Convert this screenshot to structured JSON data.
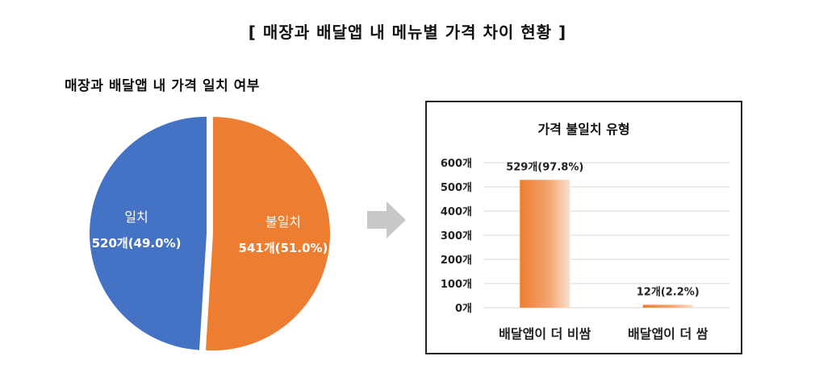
{
  "main_title": "[ 매장과 배달앱 내 메뉴별 가격 차이 현황 ]",
  "chart_data": [
    {
      "type": "pie",
      "title": "매장과 배달앱 내 가격 일치 여부",
      "slices": [
        {
          "label": "불일치",
          "value": 541,
          "value_label": "541개(51.0%)",
          "color": "#ED7D31"
        },
        {
          "label": "일치",
          "value": 520,
          "value_label": "520개(49.0%)",
          "color": "#4472C4"
        }
      ]
    },
    {
      "type": "bar",
      "title": "가격 불일치 유형",
      "categories": [
        "배달앱이 더 비쌈",
        "배달앱이 더 쌈"
      ],
      "values": [
        529,
        12
      ],
      "data_labels": [
        "529개(97.8%)",
        "12개(2.2%)"
      ],
      "ylim": [
        0,
        600
      ],
      "yticks": [
        "0개",
        "100개",
        "200개",
        "300개",
        "400개",
        "500개",
        "600개"
      ],
      "grid": true,
      "color": "#ED7D31"
    }
  ]
}
